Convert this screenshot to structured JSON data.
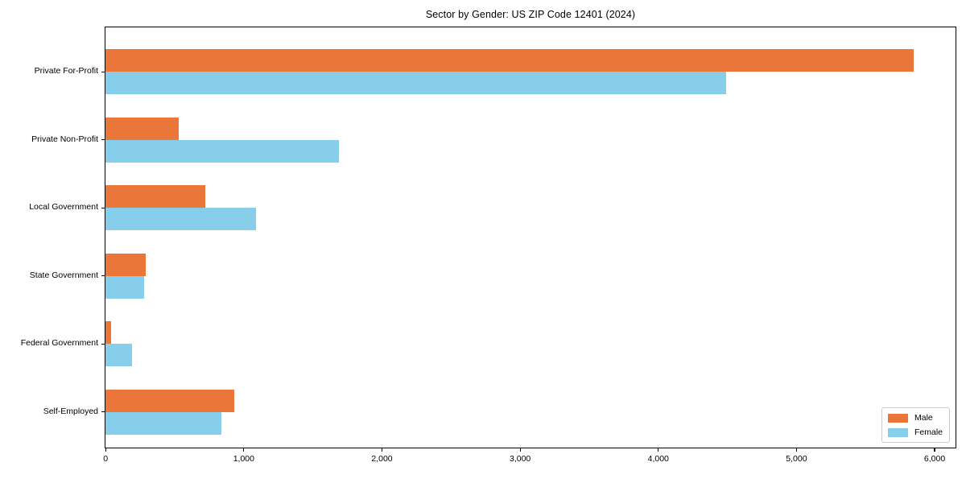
{
  "title": "Sector by Gender: US ZIP Code 12401 (2024)",
  "colors": {
    "male": "#EB7639",
    "female": "#87CEEB",
    "axis": "#000000",
    "legend_border": "#cccccc",
    "background": "#ffffff"
  },
  "chart_data": {
    "type": "bar",
    "orientation": "horizontal",
    "title": "Sector by Gender: US ZIP Code 12401 (2024)",
    "xlabel": "",
    "ylabel": "",
    "categories": [
      "Private For-Profit",
      "Private Non-Profit",
      "Local Government",
      "State Government",
      "Federal Government",
      "Self-Employed"
    ],
    "series": [
      {
        "name": "Male",
        "color": "#EB7639",
        "values": [
          5850,
          530,
          720,
          290,
          40,
          930
        ]
      },
      {
        "name": "Female",
        "color": "#87CEEB",
        "values": [
          4490,
          1690,
          1090,
          280,
          190,
          840
        ]
      }
    ],
    "xlim": [
      0,
      6150
    ],
    "xticks": [
      0,
      1000,
      2000,
      3000,
      4000,
      5000,
      6000
    ],
    "xtick_labels": [
      "0",
      "1,000",
      "2,000",
      "3,000",
      "4,000",
      "5,000",
      "6,000"
    ],
    "grid": false,
    "legend": {
      "position": "lower right",
      "entries": [
        "Male",
        "Female"
      ]
    }
  }
}
